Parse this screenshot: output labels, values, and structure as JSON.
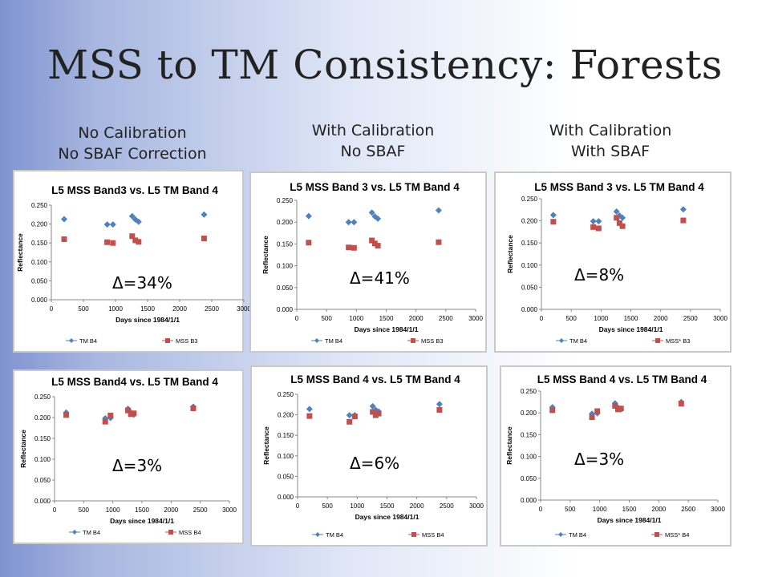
{
  "slide": {
    "title": "MSS to TM Consistency: Forests",
    "columns": [
      {
        "line1": "No Calibration",
        "line2": "No SBAF Correction"
      },
      {
        "line1": "With Calibration",
        "line2": "No SBAF"
      },
      {
        "line1": "With Calibration",
        "line2": "With SBAF"
      }
    ]
  },
  "colors": {
    "tm": "#4f81bd",
    "mss": "#c0504d"
  },
  "chart_data": [
    {
      "type": "scatter",
      "title": "L5 MSS Band3 vs. L5 TM Band 4",
      "xlabel": "Days since 1984/1/1",
      "ylabel": "Reflectance",
      "xlim": [
        0,
        3000
      ],
      "ylim": [
        0,
        0.25
      ],
      "xticks": [
        "0",
        "500",
        "1000",
        "1500",
        "2000",
        "2500",
        "3000"
      ],
      "yticks": [
        "0.000",
        "0.050",
        "0.100",
        "0.150",
        "0.200",
        "0.250"
      ],
      "annotation": "Δ=34%",
      "series": [
        {
          "name": "TM B4",
          "marker": "diamond",
          "x": [
            200,
            870,
            960,
            1260,
            1310,
            1360,
            2380
          ],
          "y": [
            0.213,
            0.199,
            0.199,
            0.221,
            0.212,
            0.206,
            0.225
          ]
        },
        {
          "name": "MSS B3",
          "marker": "square",
          "x": [
            200,
            870,
            960,
            1260,
            1310,
            1360,
            2380
          ],
          "y": [
            0.16,
            0.152,
            0.15,
            0.168,
            0.157,
            0.153,
            0.162
          ]
        }
      ]
    },
    {
      "type": "scatter",
      "title": "L5 MSS Band 3 vs. L5 TM Band 4",
      "xlabel": "Days since 1984/1/1",
      "ylabel": "Reflectance",
      "xlim": [
        0,
        3000
      ],
      "ylim": [
        0,
        0.25
      ],
      "xticks": [
        "0",
        "500",
        "1000",
        "1500",
        "2000",
        "2500",
        "3000"
      ],
      "yticks": [
        "0.000",
        "0.050",
        "0.100",
        "0.150",
        "0.200",
        "0.250"
      ],
      "annotation": "Δ=41%",
      "series": [
        {
          "name": "TM B4",
          "marker": "diamond",
          "x": [
            200,
            870,
            960,
            1260,
            1310,
            1360,
            2380
          ],
          "y": [
            0.214,
            0.2,
            0.2,
            0.222,
            0.213,
            0.208,
            0.227
          ]
        },
        {
          "name": "MSS B3",
          "marker": "square",
          "x": [
            200,
            870,
            960,
            1260,
            1310,
            1360,
            2380
          ],
          "y": [
            0.153,
            0.142,
            0.141,
            0.158,
            0.151,
            0.146,
            0.154
          ]
        }
      ]
    },
    {
      "type": "scatter",
      "title": "L5 MSS Band 3 vs. L5 TM Band 4",
      "xlabel": "Days since 1984/1/1",
      "ylabel": "Reflectance",
      "xlim": [
        0,
        3000
      ],
      "ylim": [
        0,
        0.25
      ],
      "xticks": [
        "0",
        "500",
        "1000",
        "1500",
        "2000",
        "2500",
        "3000"
      ],
      "yticks": [
        "0.000",
        "0.050",
        "0.100",
        "0.150",
        "0.200",
        "0.250"
      ],
      "annotation": "Δ=8%",
      "series": [
        {
          "name": "TM B4",
          "marker": "diamond",
          "x": [
            200,
            870,
            960,
            1260,
            1310,
            1360,
            2380
          ],
          "y": [
            0.213,
            0.199,
            0.199,
            0.221,
            0.212,
            0.207,
            0.226
          ]
        },
        {
          "name": "MSS* B3",
          "marker": "square",
          "x": [
            200,
            870,
            960,
            1260,
            1310,
            1360,
            2380
          ],
          "y": [
            0.198,
            0.186,
            0.183,
            0.207,
            0.195,
            0.188,
            0.201
          ]
        }
      ]
    },
    {
      "type": "scatter",
      "title": "L5 MSS Band4 vs. L5 TM Band 4",
      "xlabel": "Days since 1984/1/1",
      "ylabel": "Reflectance",
      "xlim": [
        0,
        3000
      ],
      "ylim": [
        0,
        0.25
      ],
      "xticks": [
        "0",
        "500",
        "1000",
        "1500",
        "2000",
        "2500",
        "3000"
      ],
      "yticks": [
        "0.000",
        "0.050",
        "0.100",
        "0.150",
        "0.200",
        "0.250"
      ],
      "annotation": "Δ=3%",
      "series": [
        {
          "name": "TM B4",
          "marker": "diamond",
          "x": [
            200,
            870,
            960,
            1260,
            1310,
            1360,
            2380
          ],
          "y": [
            0.212,
            0.198,
            0.199,
            0.221,
            0.212,
            0.207,
            0.226
          ]
        },
        {
          "name": "MSS B4",
          "marker": "square",
          "x": [
            200,
            870,
            960,
            1260,
            1310,
            1360,
            2380
          ],
          "y": [
            0.206,
            0.19,
            0.205,
            0.217,
            0.208,
            0.21,
            0.222
          ]
        }
      ]
    },
    {
      "type": "scatter",
      "title": "L5 MSS Band 4 vs. L5 TM Band 4",
      "xlabel": "Days since 1984/1/1",
      "ylabel": "Reflectance",
      "xlim": [
        0,
        3000
      ],
      "ylim": [
        0,
        0.25
      ],
      "xticks": [
        "0",
        "500",
        "1000",
        "1500",
        "2000",
        "2500",
        "3000"
      ],
      "yticks": [
        "0.000",
        "0.050",
        "0.100",
        "0.150",
        "0.200",
        "0.250"
      ],
      "annotation": "Δ=6%",
      "series": [
        {
          "name": "TM B4",
          "marker": "diamond",
          "x": [
            200,
            870,
            960,
            1260,
            1310,
            1360,
            2380
          ],
          "y": [
            0.214,
            0.199,
            0.199,
            0.221,
            0.212,
            0.208,
            0.226
          ]
        },
        {
          "name": "MSS B4",
          "marker": "square",
          "x": [
            200,
            870,
            960,
            1260,
            1310,
            1360,
            2380
          ],
          "y": [
            0.197,
            0.183,
            0.196,
            0.207,
            0.199,
            0.203,
            0.212
          ]
        }
      ]
    },
    {
      "type": "scatter",
      "title": "L5 MSS Band 4 vs. L5 TM Band 4",
      "xlabel": "Days since 1984/1/1",
      "ylabel": "Reflectance",
      "xlim": [
        0,
        3000
      ],
      "ylim": [
        0,
        0.25
      ],
      "xticks": [
        "0",
        "500",
        "1000",
        "1500",
        "2000",
        "2500",
        "3000"
      ],
      "yticks": [
        "0.000",
        "0.050",
        "0.100",
        "0.150",
        "0.200",
        "0.250"
      ],
      "annotation": "Δ=3%",
      "series": [
        {
          "name": "TM B4",
          "marker": "diamond",
          "x": [
            200,
            870,
            960,
            1260,
            1310,
            1360,
            2380
          ],
          "y": [
            0.213,
            0.198,
            0.199,
            0.222,
            0.212,
            0.208,
            0.225
          ]
        },
        {
          "name": "MSS* B4",
          "marker": "square",
          "x": [
            200,
            870,
            960,
            1260,
            1310,
            1360,
            2380
          ],
          "y": [
            0.206,
            0.19,
            0.204,
            0.216,
            0.208,
            0.21,
            0.221
          ]
        }
      ]
    }
  ]
}
